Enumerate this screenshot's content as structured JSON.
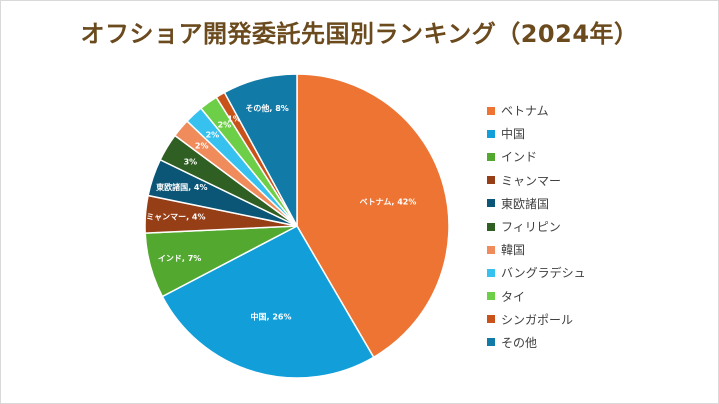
{
  "chart_data": {
    "type": "pie",
    "title": "オフショア開発委託先国別ランキング（2024年）",
    "categories": [
      "ベトナム",
      "中国",
      "インド",
      "ミャンマー",
      "東欧諸国",
      "フィリピン",
      "韓国",
      "バングラデシュ",
      "タイ",
      "シンガポール",
      "その他"
    ],
    "values": [
      42,
      26,
      7,
      4,
      4,
      3,
      2,
      2,
      2,
      1,
      8
    ],
    "data_labels": [
      "ベトナム, 42%",
      "中国, 26%",
      "インド, 7%",
      "ミャンマー, 4%",
      "東欧諸国, 4%",
      "3%",
      "2%",
      "2%",
      "2%",
      "1%",
      "その他, 8%"
    ],
    "colors": [
      "#ed7433",
      "#129ed9",
      "#53a830",
      "#963e16",
      "#0b5676",
      "#2f5f22",
      "#f08b5b",
      "#36c1ef",
      "#6dcf47",
      "#c85219",
      "#117aa6"
    ],
    "legend_position": "right",
    "start_angle_deg": 0,
    "direction": "clockwise"
  }
}
